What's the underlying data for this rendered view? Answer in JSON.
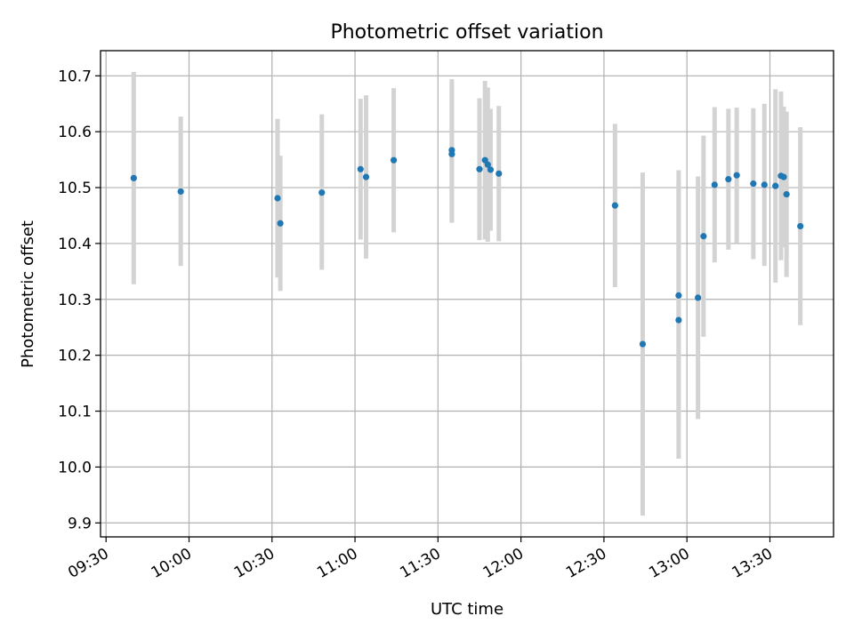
{
  "chart_data": {
    "type": "scatter",
    "title": "Photometric offset variation",
    "xlabel": "UTC time",
    "ylabel": "Photometric offset",
    "xlim": [
      "09:28",
      "13:53"
    ],
    "ylim": [
      9.875,
      10.745
    ],
    "x_ticks": [
      "09:30",
      "10:00",
      "10:30",
      "11:00",
      "11:30",
      "12:00",
      "12:30",
      "13:00",
      "13:30"
    ],
    "y_ticks": [
      "9.9",
      "10.0",
      "10.1",
      "10.2",
      "10.3",
      "10.4",
      "10.5",
      "10.6",
      "10.7"
    ],
    "grid": true,
    "marker_color": "#1f77b4",
    "errorbar_color": "#d3d3d3",
    "points": [
      {
        "x": "09:40",
        "y": 10.517,
        "low": 10.327,
        "high": 10.707
      },
      {
        "x": "09:57",
        "y": 10.493,
        "low": 10.36,
        "high": 10.627
      },
      {
        "x": "10:32",
        "y": 10.481,
        "low": 10.339,
        "high": 10.623
      },
      {
        "x": "10:33",
        "y": 10.436,
        "low": 10.315,
        "high": 10.557
      },
      {
        "x": "10:48",
        "y": 10.491,
        "low": 10.353,
        "high": 10.631
      },
      {
        "x": "11:02",
        "y": 10.533,
        "low": 10.407,
        "high": 10.659
      },
      {
        "x": "11:04",
        "y": 10.519,
        "low": 10.373,
        "high": 10.665
      },
      {
        "x": "11:14",
        "y": 10.549,
        "low": 10.42,
        "high": 10.678
      },
      {
        "x": "11:35",
        "y": 10.567,
        "low": 10.44,
        "high": 10.694
      },
      {
        "x": "11:35",
        "y": 10.56,
        "low": 10.437,
        "high": 10.683
      },
      {
        "x": "11:45",
        "y": 10.533,
        "low": 10.406,
        "high": 10.66
      },
      {
        "x": "11:47",
        "y": 10.549,
        "low": 10.407,
        "high": 10.691
      },
      {
        "x": "11:48",
        "y": 10.541,
        "low": 10.403,
        "high": 10.679
      },
      {
        "x": "11:49",
        "y": 10.532,
        "low": 10.423,
        "high": 10.641
      },
      {
        "x": "11:52",
        "y": 10.525,
        "low": 10.404,
        "high": 10.646
      },
      {
        "x": "12:34",
        "y": 10.468,
        "low": 10.322,
        "high": 10.614
      },
      {
        "x": "12:44",
        "y": 10.22,
        "low": 9.913,
        "high": 10.527
      },
      {
        "x": "12:57",
        "y": 10.307,
        "low": 10.083,
        "high": 10.531
      },
      {
        "x": "12:57",
        "y": 10.263,
        "low": 10.015,
        "high": 10.511
      },
      {
        "x": "13:04",
        "y": 10.303,
        "low": 10.086,
        "high": 10.52
      },
      {
        "x": "13:06",
        "y": 10.413,
        "low": 10.233,
        "high": 10.593
      },
      {
        "x": "13:10",
        "y": 10.505,
        "low": 10.366,
        "high": 10.644
      },
      {
        "x": "13:15",
        "y": 10.515,
        "low": 10.389,
        "high": 10.641
      },
      {
        "x": "13:18",
        "y": 10.522,
        "low": 10.401,
        "high": 10.643
      },
      {
        "x": "13:24",
        "y": 10.507,
        "low": 10.372,
        "high": 10.642
      },
      {
        "x": "13:28",
        "y": 10.505,
        "low": 10.36,
        "high": 10.65
      },
      {
        "x": "13:32",
        "y": 10.503,
        "low": 10.33,
        "high": 10.676
      },
      {
        "x": "13:34",
        "y": 10.521,
        "low": 10.37,
        "high": 10.672
      },
      {
        "x": "13:35",
        "y": 10.519,
        "low": 10.393,
        "high": 10.645
      },
      {
        "x": "13:36",
        "y": 10.488,
        "low": 10.34,
        "high": 10.636
      },
      {
        "x": "13:41",
        "y": 10.431,
        "low": 10.254,
        "high": 10.608
      }
    ]
  }
}
